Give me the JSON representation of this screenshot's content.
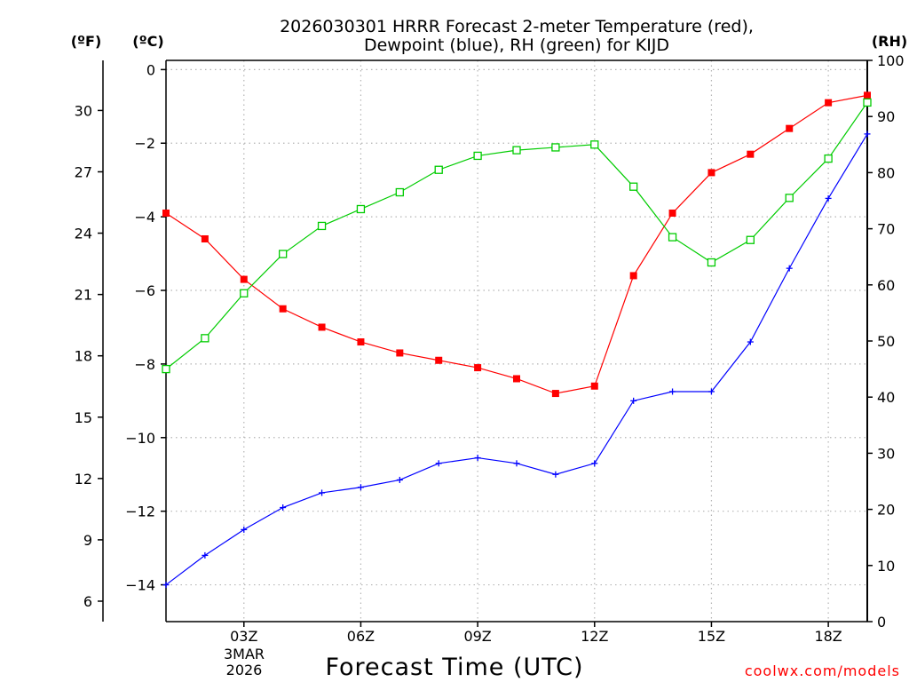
{
  "chart_data": {
    "type": "line",
    "title_line1": "2026030301 HRRR Forecast 2-meter Temperature (red),",
    "title_line2": "Dewpoint (blue), RH (green) for KIJD",
    "xlabel": "Forecast Time (UTC)",
    "credit": "coolwx.com/models",
    "unit_f": "(ºF)",
    "unit_c": "(ºC)",
    "unit_rh": "(RH)",
    "x_hours": [
      1,
      2,
      3,
      4,
      5,
      6,
      7,
      8,
      9,
      10,
      11,
      12,
      13,
      14,
      15,
      16,
      17,
      18,
      19
    ],
    "x_range": [
      1,
      19
    ],
    "x_ticks": [
      {
        "hour": 3,
        "label": "03Z"
      },
      {
        "hour": 6,
        "label": "06Z"
      },
      {
        "hour": 9,
        "label": "09Z"
      },
      {
        "hour": 12,
        "label": "12Z"
      },
      {
        "hour": 15,
        "label": "15Z"
      },
      {
        "hour": 18,
        "label": "18Z"
      }
    ],
    "date_label_line1": "3MAR",
    "date_label_line2": "2026",
    "ylim_c": [
      -15,
      0.25
    ],
    "y_ticks_c": [
      "0",
      "−2",
      "−4",
      "−6",
      "−8",
      "−10",
      "−12",
      "−14"
    ],
    "y_ticks_f": [
      "30",
      "27",
      "24",
      "21",
      "18",
      "15",
      "12",
      "9",
      "6"
    ],
    "ylim_rh": [
      0,
      100
    ],
    "y_ticks_rh": [
      "0",
      "10",
      "20",
      "30",
      "40",
      "50",
      "60",
      "70",
      "80",
      "90",
      "100"
    ],
    "grid": true,
    "colors": {
      "temperature": "#ff0000",
      "dewpoint": "#0000ff",
      "rh": "#00cc00",
      "credit": "#ff0000",
      "grid": "#b4b4b4"
    },
    "series": [
      {
        "name": "Temperature",
        "unit": "C",
        "marker": "filled-square",
        "values": [
          -3.9,
          -4.6,
          -5.7,
          -6.5,
          -7.0,
          -7.4,
          -7.7,
          -7.9,
          -8.1,
          -8.4,
          -8.8,
          -8.6,
          -5.6,
          -3.9,
          -2.8,
          -2.3,
          -1.6,
          -0.9,
          -0.7
        ]
      },
      {
        "name": "Dewpoint",
        "unit": "C",
        "marker": "plus",
        "values": [
          -14.0,
          -13.2,
          -12.5,
          -11.9,
          -11.5,
          -11.35,
          -11.15,
          -10.7,
          -10.55,
          -10.7,
          -11.0,
          -10.7,
          -9.0,
          -8.75,
          -8.75,
          -7.4,
          -5.4,
          -3.5,
          -1.75
        ]
      },
      {
        "name": "RH",
        "unit": "%",
        "marker": "open-square",
        "values": [
          45,
          50.5,
          58.5,
          65.5,
          70.5,
          73.5,
          76.5,
          80.5,
          83,
          84,
          84.5,
          85,
          77.5,
          68.5,
          64,
          68,
          75.5,
          82.5,
          92.5
        ]
      }
    ]
  }
}
